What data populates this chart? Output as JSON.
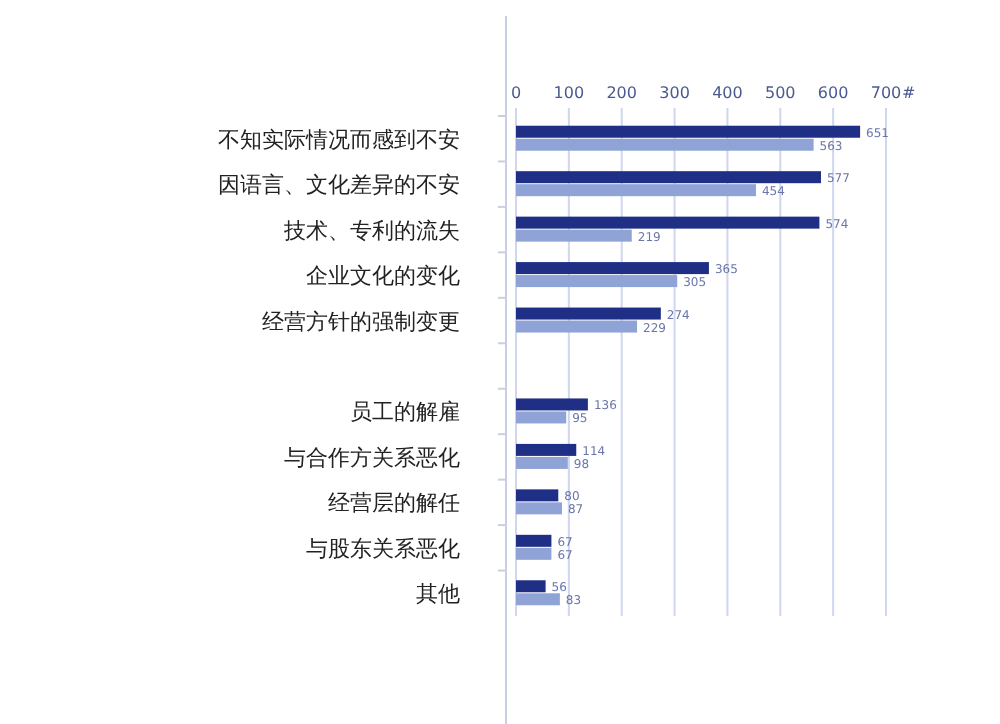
{
  "chart_data": {
    "type": "bar",
    "orientation": "horizontal",
    "xlabel": "#",
    "categories": [
      "不知实际情况而感到不安",
      "因语言、文化差异的不安",
      "技术、专利的流失",
      "企业文化的变化",
      "经营方针的强制变更",
      null,
      "员工的解雇",
      "与合作方关系恶化",
      "经营层的解任",
      "与股东关系恶化",
      "其他"
    ],
    "series": [
      {
        "color": "#1f2f86",
        "values": [
          651,
          577,
          574,
          365,
          274,
          null,
          136,
          114,
          80,
          67,
          56
        ]
      },
      {
        "color": "#8fa3d6",
        "values": [
          563,
          454,
          219,
          305,
          229,
          null,
          95,
          98,
          87,
          67,
          83
        ]
      }
    ],
    "xlim": [
      0,
      700
    ],
    "xticks": [
      0,
      100,
      200,
      300,
      400,
      500,
      600,
      700
    ],
    "grid": "x",
    "data_labels": true
  }
}
